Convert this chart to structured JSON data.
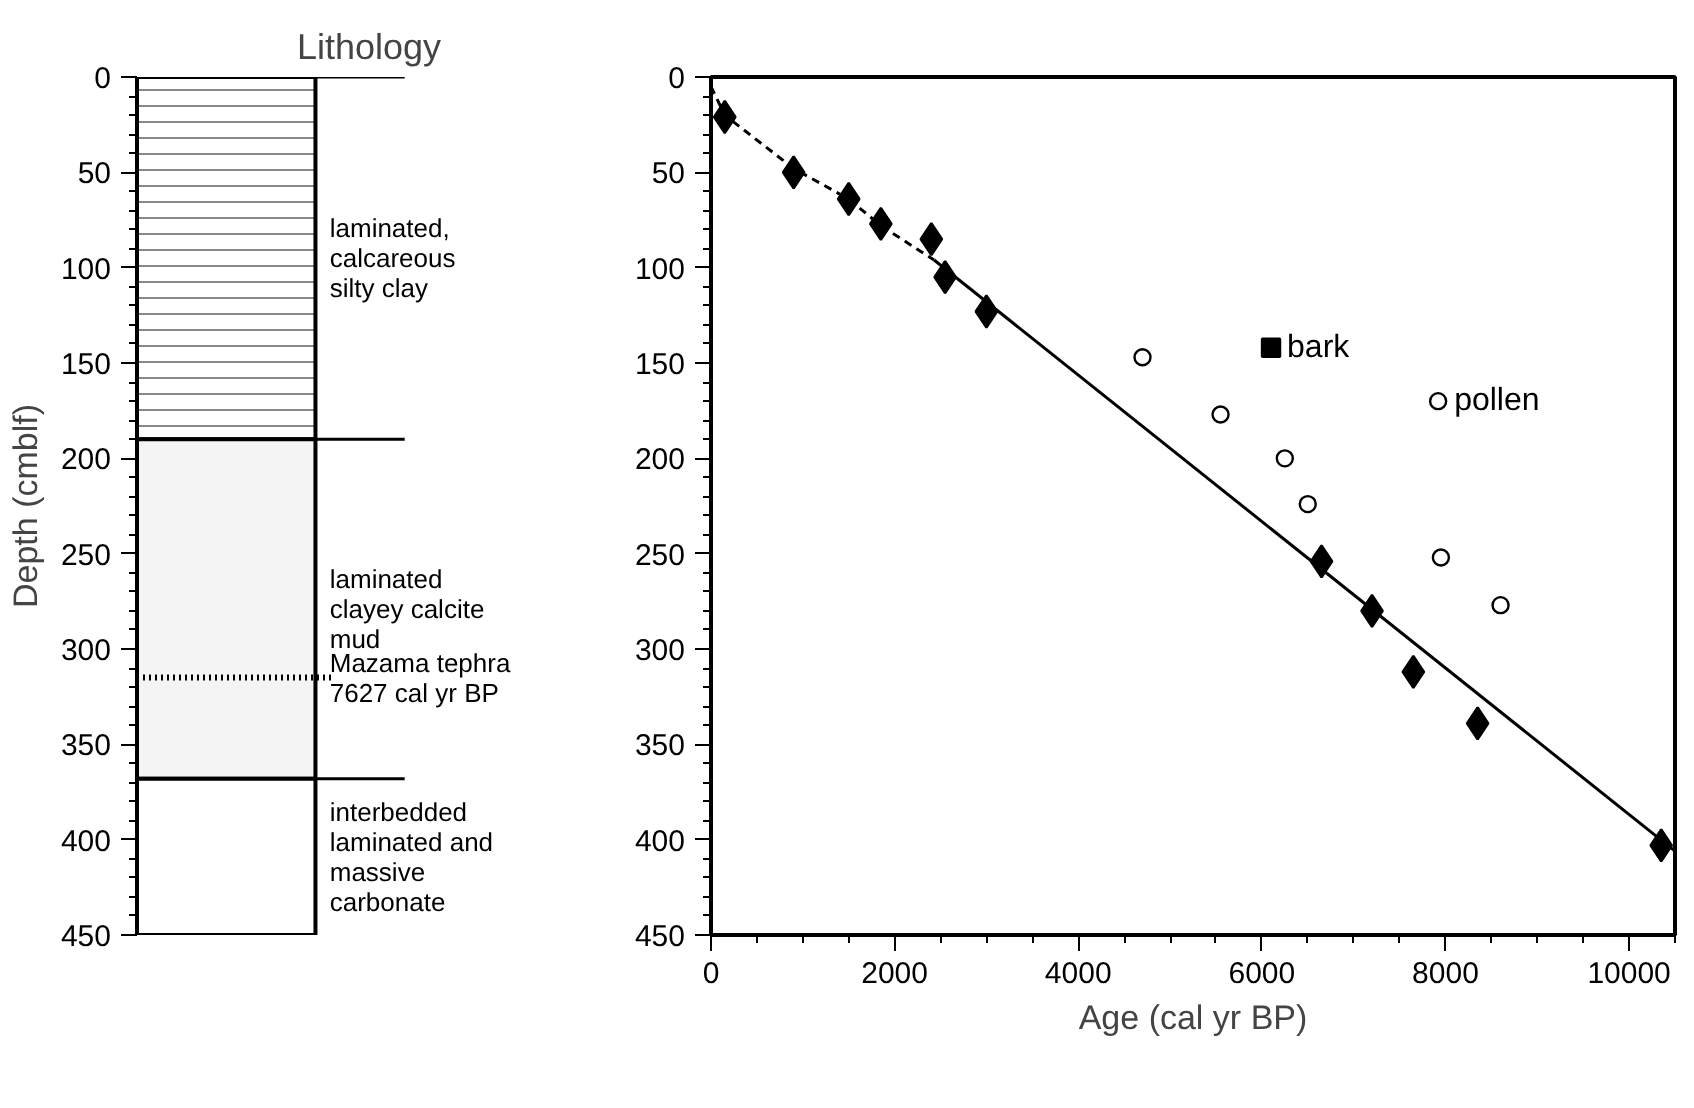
{
  "chart_data": [
    {
      "type": "bar",
      "stacked": true,
      "title": "Lithology",
      "ylabel": "Depth (cmblf)",
      "categories": [
        null
      ],
      "ylim": [
        450,
        0
      ],
      "yticks": [
        0,
        50,
        100,
        150,
        200,
        250,
        300,
        350,
        400,
        450
      ],
      "tick_labels": "y",
      "series": [
        {
          "name": "laminated,\ncalcareous\nsilty clay",
          "color": "#ffffff",
          "values": [
            190
          ]
        },
        {
          "name": "laminated\nclayey calcite\nmud",
          "color": "#f4f4f4",
          "values": [
            178
          ]
        },
        {
          "name": "interbedded\nlaminated and\nmassive\ncarbonate",
          "color": "#ffffff",
          "values": [
            82
          ]
        }
      ],
      "ref_lines": [
        {
          "axis": "y",
          "value": 315,
          "label": "Mazama tephra\n7627 cal yr BP",
          "color": "#000000",
          "line_style": "dotted"
        }
      ]
    },
    {
      "type": "scatter",
      "xlabel": "Age (cal yr BP)",
      "xlim": [
        0,
        10500
      ],
      "xticks": [
        0,
        2000,
        4000,
        6000,
        8000,
        10000
      ],
      "ylim": [
        450,
        0
      ],
      "yticks": [
        0,
        50,
        100,
        150,
        200,
        250,
        300,
        350,
        400,
        450
      ],
      "series": [
        {
          "type": "scatter",
          "marker": "diamond",
          "color": "#000000",
          "x": [
            150,
            900,
            1500,
            1850,
            2400,
            2550,
            3000,
            6650,
            7200,
            7650,
            8350,
            10350
          ],
          "values": [
            21,
            50,
            64,
            77,
            85,
            105,
            123,
            254,
            280,
            312,
            339,
            403
          ]
        },
        {
          "type": "scatter",
          "marker": "square",
          "color": "#000000",
          "x": [
            6100
          ],
          "values": [
            142
          ]
        },
        {
          "type": "scatter",
          "marker": "circle",
          "color": "#ffffff",
          "x": [
            4700,
            5550,
            6250,
            6500,
            7950,
            8600,
            7920
          ],
          "values": [
            147,
            177,
            200,
            224,
            252,
            277,
            170
          ]
        },
        {
          "type": "line",
          "line_style": "dashed",
          "color": "#000000",
          "x": [
            0,
            150,
            900,
            1500,
            1850,
            2430
          ],
          "values": [
            5,
            20,
            48,
            64,
            78,
            96
          ]
        },
        {
          "type": "line",
          "line_style": "solid",
          "color": "#000000",
          "x": [
            2430,
            10500
          ],
          "values": [
            96,
            406
          ]
        }
      ],
      "annotations": [
        {
          "text": "bark",
          "x": 6100,
          "y": 142
        },
        {
          "text": "pollen",
          "x": 7920,
          "y": 170
        }
      ]
    }
  ]
}
